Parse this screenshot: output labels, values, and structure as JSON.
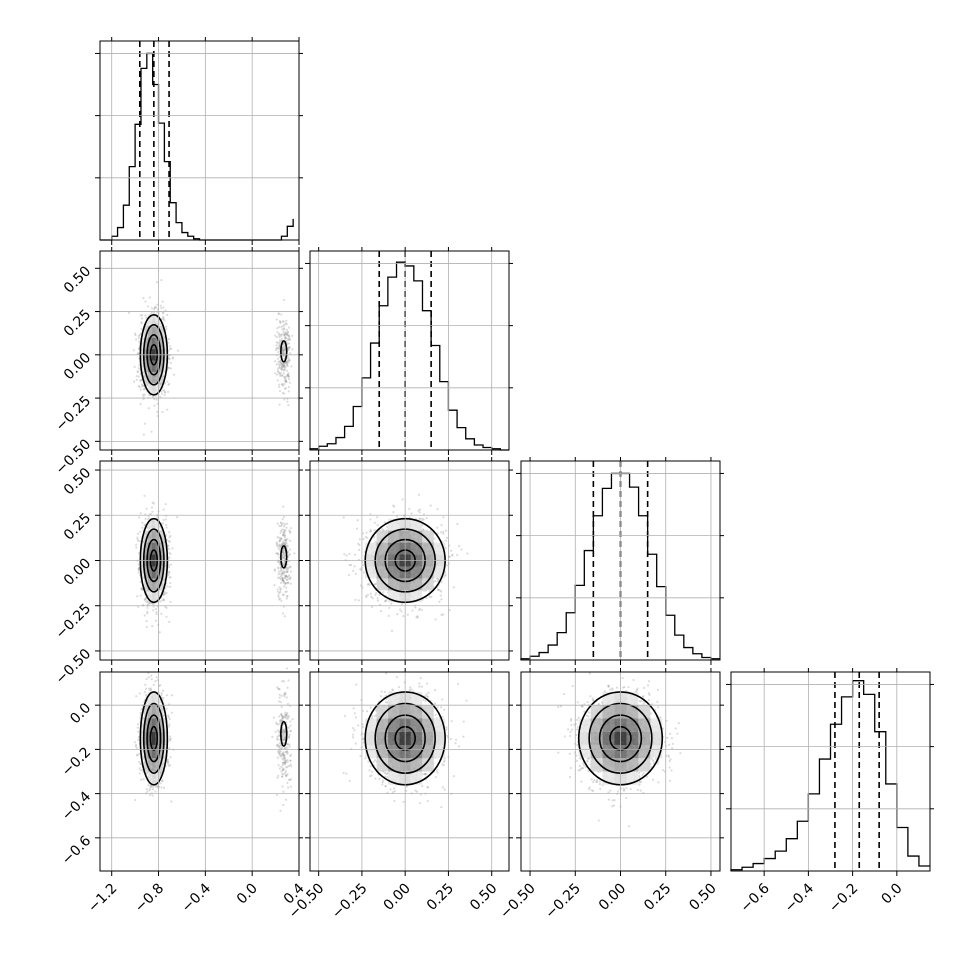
{
  "chart_data": {
    "type": "corner",
    "grid": true,
    "colors": {
      "ink": "#000000",
      "grid": "#b0b0b0",
      "points": "#9a9a9a"
    },
    "parameters": [
      {
        "range": [
          -1.3,
          0.4
        ],
        "ticks": [
          -1.2,
          -0.8,
          -0.4,
          0.0,
          0.4
        ],
        "tick_labels": [
          "−1.2",
          "−0.8",
          "−0.4",
          "0.0",
          "0.4"
        ],
        "quantiles": [
          -0.96,
          -0.84,
          -0.71
        ],
        "hist_bins": [
          -1.3,
          -1.2,
          -1.15,
          -1.1,
          -1.05,
          -1.0,
          -0.95,
          -0.9,
          -0.85,
          -0.8,
          -0.75,
          -0.7,
          -0.65,
          -0.6,
          -0.55,
          -0.5,
          -0.45,
          -0.4,
          -0.35,
          -0.3,
          -0.25,
          -0.2,
          -0.15,
          -0.1,
          -0.05,
          0.0,
          0.05,
          0.1,
          0.15,
          0.2,
          0.25,
          0.3,
          0.35
        ],
        "hist_counts": [
          0,
          3,
          10,
          28,
          59,
          93,
          138,
          150,
          125,
          94,
          63,
          30,
          14,
          6,
          3,
          1,
          0,
          0,
          0,
          0,
          0,
          0,
          0,
          0,
          0,
          0,
          0,
          0,
          0,
          0,
          3,
          11,
          17
        ],
        "hist_max": 160,
        "clusters": [
          {
            "center": -0.84,
            "spread": 0.055
          },
          {
            "center": 0.27,
            "spread": 0.03
          }
        ]
      },
      {
        "range": [
          -0.55,
          0.6
        ],
        "ticks": [
          -0.5,
          -0.25,
          0.0,
          0.25,
          0.5
        ],
        "tick_labels": [
          "−0.50",
          "−0.25",
          "0.00",
          "0.25",
          "0.50"
        ],
        "quantiles": [
          -0.15,
          0.0,
          0.15
        ],
        "hist_bins": [
          -0.55,
          -0.5,
          -0.45,
          -0.4,
          -0.35,
          -0.3,
          -0.25,
          -0.2,
          -0.15,
          -0.1,
          -0.05,
          0.0,
          0.05,
          0.1,
          0.15,
          0.2,
          0.25,
          0.3,
          0.35,
          0.4,
          0.45,
          0.5,
          0.55,
          0.6
        ],
        "hist_counts": [
          1,
          3,
          5,
          10,
          19,
          35,
          58,
          86,
          116,
          139,
          151,
          148,
          136,
          112,
          84,
          55,
          32,
          18,
          9,
          4,
          2,
          1,
          0
        ],
        "hist_max": 160,
        "center": 0.0,
        "spread": 0.11
      },
      {
        "range": [
          -0.55,
          0.55
        ],
        "ticks": [
          -0.5,
          -0.25,
          0.0,
          0.25,
          0.5
        ],
        "tick_labels": [
          "−0.50",
          "−0.25",
          "0.00",
          "0.25",
          "0.50"
        ],
        "quantiles": [
          -0.15,
          0.0,
          0.15
        ],
        "hist_bins": [
          -0.55,
          -0.5,
          -0.45,
          -0.4,
          -0.35,
          -0.3,
          -0.25,
          -0.2,
          -0.15,
          -0.1,
          -0.05,
          0.0,
          0.05,
          0.1,
          0.15,
          0.2,
          0.25,
          0.3,
          0.35,
          0.4,
          0.45,
          0.5,
          0.55
        ],
        "hist_counts": [
          1,
          3,
          6,
          12,
          22,
          38,
          60,
          88,
          116,
          138,
          150,
          150,
          139,
          116,
          85,
          59,
          36,
          20,
          10,
          5,
          2,
          1
        ],
        "hist_max": 160,
        "center": 0.0,
        "spread": 0.11
      },
      {
        "range": [
          -0.75,
          0.15
        ],
        "ticks": [
          -0.6,
          -0.4,
          -0.2,
          0.0
        ],
        "tick_labels": [
          "−0.6",
          "−0.4",
          "−0.2",
          "0.0"
        ],
        "quantiles": [
          -0.28,
          -0.17,
          -0.08
        ],
        "hist_bins": [
          -0.75,
          -0.7,
          -0.65,
          -0.6,
          -0.55,
          -0.5,
          -0.45,
          -0.4,
          -0.35,
          -0.3,
          -0.25,
          -0.2,
          -0.15,
          -0.1,
          -0.05,
          0.0,
          0.05,
          0.1,
          0.15
        ],
        "hist_counts": [
          1,
          3,
          6,
          10,
          16,
          26,
          40,
          62,
          90,
          118,
          140,
          153,
          142,
          112,
          70,
          35,
          12,
          4
        ],
        "hist_max": 160,
        "center": -0.15,
        "spread": 0.1
      }
    ]
  }
}
